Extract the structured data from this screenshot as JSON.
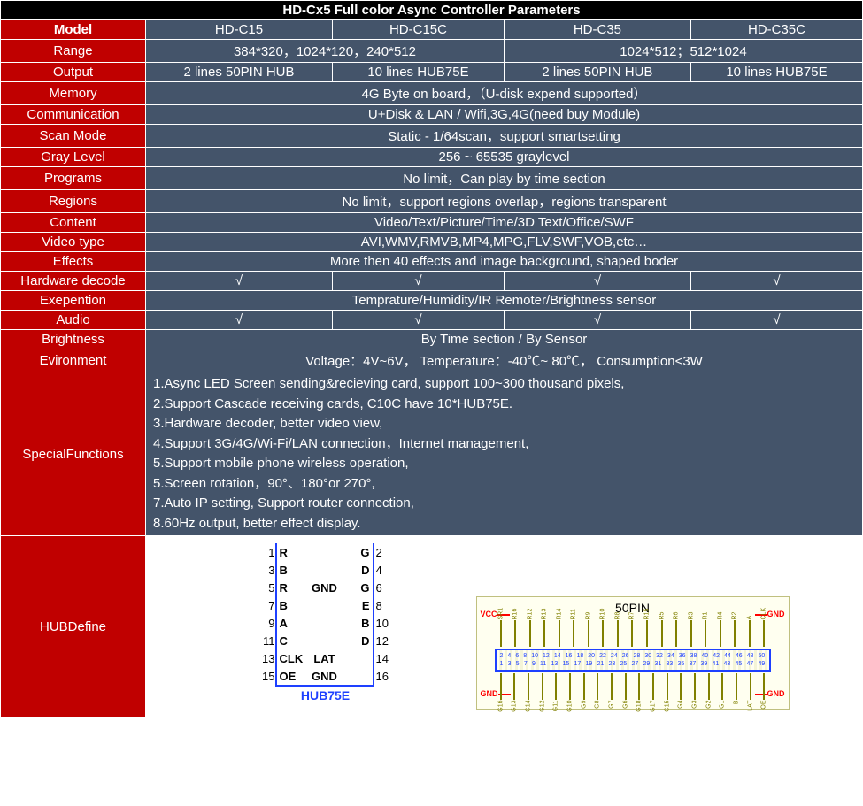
{
  "title": "HD-Cx5 Full color Async Controller Parameters",
  "header": {
    "label": "Model",
    "cols": [
      "HD-C15",
      "HD-C15C",
      "HD-C35",
      "HD-C35C"
    ]
  },
  "rows": {
    "range": {
      "label": "Range",
      "cells": [
        {
          "span": 2,
          "text": "384*320，1024*120，240*512"
        },
        {
          "span": 2,
          "text": "1024*512；512*1024"
        }
      ]
    },
    "output": {
      "label": "Output",
      "cells": [
        {
          "span": 1,
          "text": "2 lines 50PIN HUB"
        },
        {
          "span": 1,
          "text": "10 lines HUB75E"
        },
        {
          "span": 1,
          "text": "2 lines 50PIN HUB"
        },
        {
          "span": 1,
          "text": "10 lines HUB75E"
        }
      ]
    },
    "memory": {
      "label": "Memory",
      "full": "4G Byte on board，（U-disk expend supported）"
    },
    "comm": {
      "label": "Communication",
      "full": "U+Disk & LAN / Wifi,3G,4G(need buy Module)"
    },
    "scan": {
      "label": "Scan Mode",
      "full": "Static - 1/64scan，support smartsetting"
    },
    "gray": {
      "label": "Gray Level",
      "full": "256 ~ 65535 graylevel"
    },
    "programs": {
      "label": "Programs",
      "full": "No limit，Can play by time section"
    },
    "regions": {
      "label": "Regions",
      "full": "No limit，support regions overlap，regions transparent"
    },
    "content": {
      "label": "Content",
      "full": "Video/Text/Picture/Time/3D Text/Office/SWF"
    },
    "videotype": {
      "label": "Video type",
      "full": "AVI,WMV,RMVB,MP4,MPG,FLV,SWF,VOB,etc…"
    },
    "effects": {
      "label": "Effects",
      "full": "More then 40 effects and image background, shaped boder"
    },
    "hwdecode": {
      "label": "Hardware decode",
      "cells": [
        {
          "span": 1,
          "text": "√"
        },
        {
          "span": 1,
          "text": "√"
        },
        {
          "span": 1,
          "text": "√"
        },
        {
          "span": 1,
          "text": "√"
        }
      ]
    },
    "exepention": {
      "label": "Exepention",
      "full": "Temprature/Humidity/IR Remoter/Brightness sensor"
    },
    "audio": {
      "label": "Audio",
      "cells": [
        {
          "span": 1,
          "text": "√"
        },
        {
          "span": 1,
          "text": "√"
        },
        {
          "span": 1,
          "text": "√"
        },
        {
          "span": 1,
          "text": "√"
        }
      ]
    },
    "brightness": {
      "label": "Brightness",
      "full": "By Time section / By Sensor"
    },
    "evironment": {
      "label": "Evironment",
      "full": "Voltage：4V~6V， Temperature：-40℃~ 80℃， Consumption<3W"
    }
  },
  "special": {
    "label": "SpecialFunctions",
    "lines": [
      "1.Async LED Screen sending&recieving card, support 100~300 thousand pixels,",
      "2.Support Cascade receiving cards, C10C have 10*HUB75E.",
      "3.Hardware decoder, better video view,",
      "4.Support 3G/4G/Wi-Fi/LAN connection，Internet management,",
      "5.Support mobile phone wireless operation,",
      "5.Screen rotation，90°、180°or 270°,",
      "7.Auto IP setting, Support router connection,",
      "8.60Hz output, better effect display."
    ]
  },
  "hub": {
    "label": "HUBDefine",
    "hub75": {
      "caption": "HUB75E",
      "rows": [
        {
          "lnum": "1",
          "l": "R",
          "mid": "",
          "r": "G",
          "rnum": "2"
        },
        {
          "lnum": "3",
          "l": "B",
          "mid": "",
          "r": "D",
          "rnum": "4"
        },
        {
          "lnum": "5",
          "l": "R",
          "mid": "GND",
          "r": "G",
          "rnum": "6"
        },
        {
          "lnum": "7",
          "l": "B",
          "mid": "",
          "r": "E",
          "rnum": "8"
        },
        {
          "lnum": "9",
          "l": "A",
          "mid": "",
          "r": "B",
          "rnum": "10"
        },
        {
          "lnum": "11",
          "l": "C",
          "mid": "",
          "r": "D",
          "rnum": "12"
        },
        {
          "lnum": "13",
          "l": "CLK",
          "mid": "LAT",
          "r": "",
          "rnum": "14"
        },
        {
          "lnum": "15",
          "l": "OE",
          "mid": "GND",
          "r": "",
          "rnum": "16"
        }
      ]
    },
    "pin50": {
      "caption": "50PIN",
      "corners": {
        "vcc": "VCC",
        "gnd": "GND"
      },
      "top_labels": [
        "SR1",
        "R16",
        "R12",
        "R13",
        "R14",
        "R11",
        "R9",
        "R10",
        "R8",
        "R7",
        "R15",
        "R5",
        "R6",
        "R3",
        "R1",
        "R4",
        "R2",
        "A",
        "CLK"
      ],
      "bottom_labels": [
        "G16",
        "G13",
        "G14",
        "G12",
        "G11",
        "G10",
        "G9",
        "G8",
        "G7",
        "G6",
        "G18",
        "G17",
        "G15",
        "G4",
        "G3",
        "G2",
        "G1",
        "B",
        "LAT",
        "OE"
      ],
      "nums_top": [
        "2",
        "4",
        "6",
        "8",
        "10",
        "12",
        "14",
        "16",
        "18",
        "20",
        "22",
        "24",
        "26",
        "28",
        "30",
        "32",
        "34",
        "36",
        "38",
        "40",
        "42",
        "44",
        "46",
        "48",
        "50"
      ],
      "nums_bottom": [
        "1",
        "3",
        "5",
        "7",
        "9",
        "11",
        "13",
        "15",
        "17",
        "19",
        "21",
        "23",
        "25",
        "27",
        "29",
        "31",
        "33",
        "35",
        "37",
        "39",
        "41",
        "43",
        "45",
        "47",
        "49"
      ]
    }
  },
  "colors": {
    "title_bg": "#000000",
    "red": "#c00000",
    "dark": "#44546a",
    "blue": "#1e40ff",
    "wire_red": "#ff0000",
    "olive": "#808000",
    "cream": "#fffff0"
  }
}
